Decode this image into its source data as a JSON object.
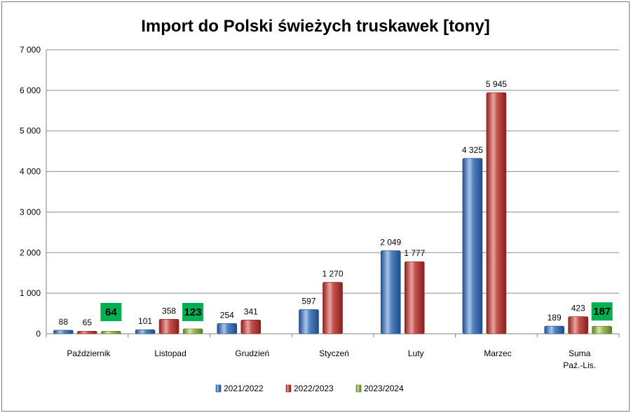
{
  "chart_data": {
    "type": "bar",
    "title": "Import do Polski świeżych truskawek [tony]",
    "xlabel": "",
    "ylabel": "",
    "ylim": [
      0,
      7000
    ],
    "yticks": [
      0,
      1000,
      2000,
      3000,
      4000,
      5000,
      6000,
      7000
    ],
    "ytick_labels": [
      "0",
      "1 000",
      "2 000",
      "3 000",
      "4 000",
      "5 000",
      "6 000",
      "7 000"
    ],
    "categories": [
      [
        "Październik"
      ],
      [
        "Listopad"
      ],
      [
        "Grudzień"
      ],
      [
        "Styczeń"
      ],
      [
        "Luty"
      ],
      [
        "Marzec"
      ],
      [
        "Suma",
        "Paź.-Lis."
      ]
    ],
    "series": [
      {
        "name": "2021/2022",
        "color": "#4f81bd",
        "dark": "#1f4e8c",
        "light": "#a9c4e8",
        "values": [
          88,
          101,
          254,
          597,
          2049,
          4325,
          189
        ],
        "labels": [
          "88",
          "101",
          "254",
          "597",
          "2 049",
          "4 325",
          "189"
        ]
      },
      {
        "name": "2022/2023",
        "color": "#c0504d",
        "dark": "#8c1f1c",
        "light": "#eaa3a1",
        "values": [
          65,
          358,
          341,
          1270,
          1777,
          5945,
          423
        ],
        "labels": [
          "65",
          "358",
          "341",
          "1 270",
          "1 777",
          "5 945",
          "423"
        ]
      },
      {
        "name": "2023/2024",
        "color": "#9bbb59",
        "dark": "#5e7a26",
        "light": "#d3e6a8",
        "values": [
          64,
          123,
          null,
          null,
          null,
          null,
          187
        ],
        "labels": [
          "64",
          "123",
          null,
          null,
          null,
          null,
          "187"
        ],
        "highlight": true,
        "highlight_color": "#00b050"
      }
    ],
    "legend": "bottom",
    "grid": true
  }
}
